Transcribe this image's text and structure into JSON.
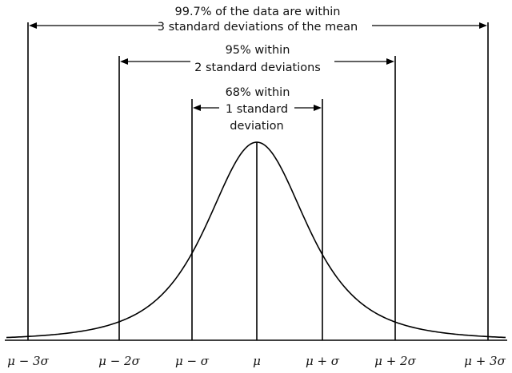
{
  "chart_data": {
    "type": "line",
    "curve": "normal-distribution",
    "ticks": [
      "μ − 3σ",
      "μ − 2σ",
      "μ − σ",
      "μ",
      "μ + σ",
      "μ + 2σ",
      "μ + 3σ"
    ],
    "tick_sigmas": [
      -3,
      -2,
      -1,
      0,
      1,
      2,
      3
    ],
    "annotations": [
      {
        "id": "sd3",
        "sigma": 3,
        "lines": [
          "99.7% of the data are within",
          "3 standard deviations of the mean"
        ]
      },
      {
        "id": "sd2",
        "sigma": 2,
        "lines": [
          "95% within",
          "2 standard deviations"
        ]
      },
      {
        "id": "sd1",
        "sigma": 1,
        "lines": [
          "68% within",
          "1 standard",
          "deviation"
        ]
      }
    ]
  }
}
